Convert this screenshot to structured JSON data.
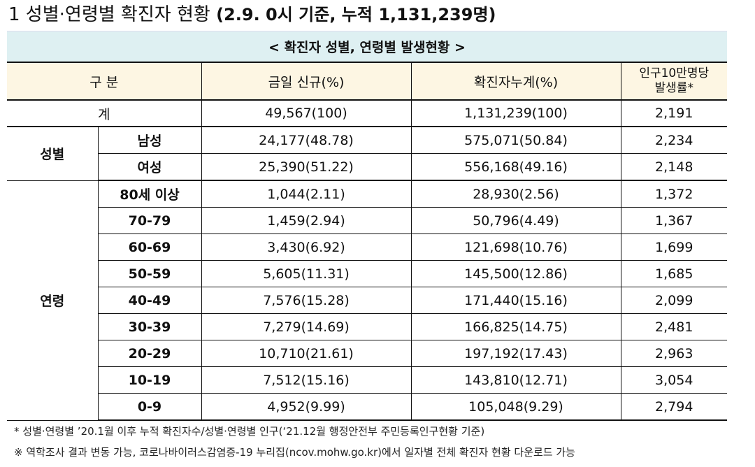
{
  "heading": {
    "prefix": "1 성별·연령별 확진자 현황",
    "detail": "(2.9. 0시 기준, 누적 1,131,239명)"
  },
  "caption": "< 확진자 성별, 연령별 발생현황 >",
  "columns": {
    "category": "구 분",
    "new": "금일 신규(%)",
    "cumulative": "확진자누계(%)",
    "rate_line1": "인구10만명당",
    "rate_line2": "발생률*"
  },
  "total": {
    "label": "계",
    "new": "49,567(100)",
    "cumulative": "1,131,239(100)",
    "rate": "2,191"
  },
  "sex": {
    "label": "성별",
    "rows": [
      {
        "label": "남성",
        "new": "24,177(48.78)",
        "cumulative": "575,071(50.84)",
        "rate": "2,234"
      },
      {
        "label": "여성",
        "new": "25,390(51.22)",
        "cumulative": "556,168(49.16)",
        "rate": "2,148"
      }
    ]
  },
  "age": {
    "label": "연령",
    "rows": [
      {
        "label": "80세 이상",
        "new": "1,044(2.11)",
        "cumulative": "28,930(2.56)",
        "rate": "1,372"
      },
      {
        "label": "70-79",
        "new": "1,459(2.94)",
        "cumulative": "50,796(4.49)",
        "rate": "1,367"
      },
      {
        "label": "60-69",
        "new": "3,430(6.92)",
        "cumulative": "121,698(10.76)",
        "rate": "1,699"
      },
      {
        "label": "50-59",
        "new": "5,605(11.31)",
        "cumulative": "145,500(12.86)",
        "rate": "1,685"
      },
      {
        "label": "40-49",
        "new": "7,576(15.28)",
        "cumulative": "171,440(15.16)",
        "rate": "2,099"
      },
      {
        "label": "30-39",
        "new": "7,279(14.69)",
        "cumulative": "166,825(14.75)",
        "rate": "2,481"
      },
      {
        "label": "20-29",
        "new": "10,710(21.61)",
        "cumulative": "197,192(17.43)",
        "rate": "2,963"
      },
      {
        "label": "10-19",
        "new": "7,512(15.16)",
        "cumulative": "143,810(12.71)",
        "rate": "3,054"
      },
      {
        "label": "0-9",
        "new": "4,952(9.99)",
        "cumulative": "105,048(9.29)",
        "rate": "2,794"
      }
    ]
  },
  "notes": [
    "* 성별·연령별 ’20.1월 이후 누적 확진자수/성별·연령별 인구(‘21.12월 행정안전부 주민등록인구현황 기준)",
    "※ 역학조사 결과 변동 가능, 코로나바이러스감염증-19 누리집(ncov.mohw.go.kr)에서 일자별 전체 확진자 현황 다운로드 가능"
  ]
}
